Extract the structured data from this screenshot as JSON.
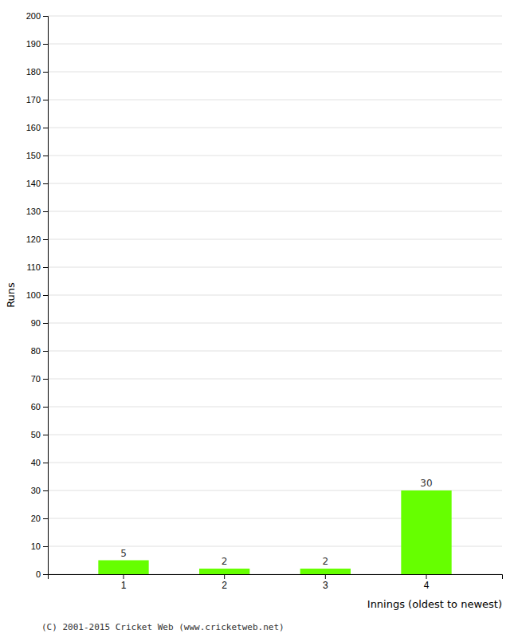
{
  "chart_data": {
    "type": "bar",
    "categories": [
      "1",
      "2",
      "3",
      "4"
    ],
    "values": [
      5,
      2,
      2,
      30
    ],
    "color": "#66ff00",
    "ylabel": "Runs",
    "xlabel": "Innings (oldest to newest)",
    "ylim": [
      0,
      200
    ],
    "yticks": [
      0,
      10,
      20,
      30,
      40,
      50,
      60,
      70,
      80,
      90,
      100,
      110,
      120,
      130,
      140,
      150,
      160,
      170,
      180,
      190,
      200
    ],
    "grid": true,
    "data_labels": true,
    "annotations": [
      "(C) 2001-2015 Cricket Web (www.cricketweb.net)"
    ]
  }
}
